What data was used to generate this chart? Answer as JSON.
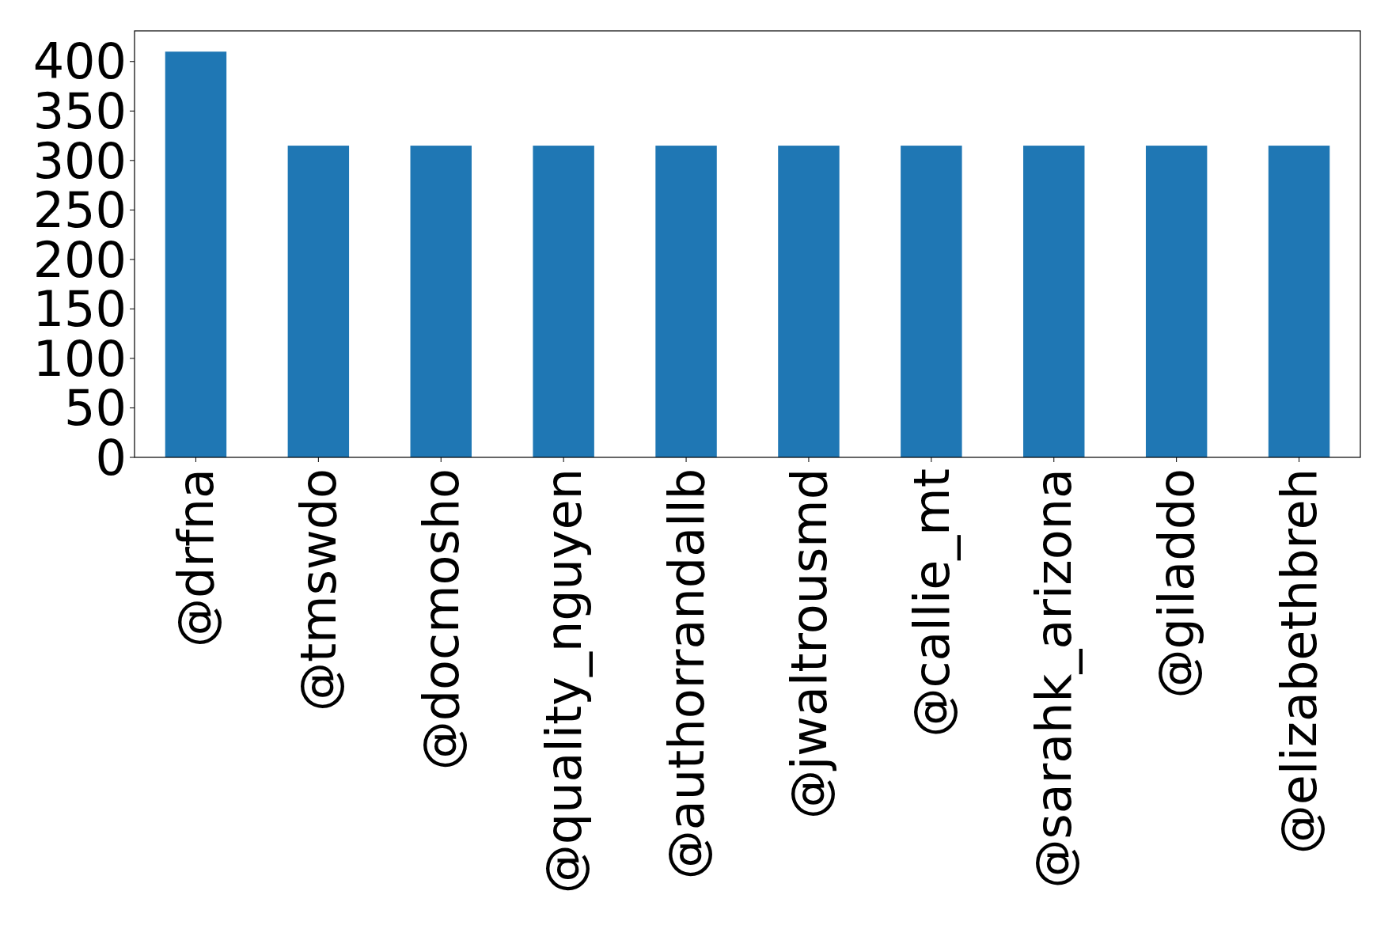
{
  "chart_data": {
    "type": "bar",
    "categories": [
      "@drfna",
      "@tmswdo",
      "@docmosho",
      "@quality_nguyen",
      "@authorrandallb",
      "@jwaltrousmd",
      "@callie_mt",
      "@sarahk_arizona",
      "@giladdo",
      "@elizabethbreh"
    ],
    "values": [
      410,
      315,
      315,
      315,
      315,
      315,
      315,
      315,
      315,
      315
    ],
    "color": "#1f77b4",
    "ylim": [
      0,
      431
    ],
    "yticks": [
      0,
      50,
      100,
      150,
      200,
      250,
      300,
      350,
      400
    ],
    "grid": false
  }
}
